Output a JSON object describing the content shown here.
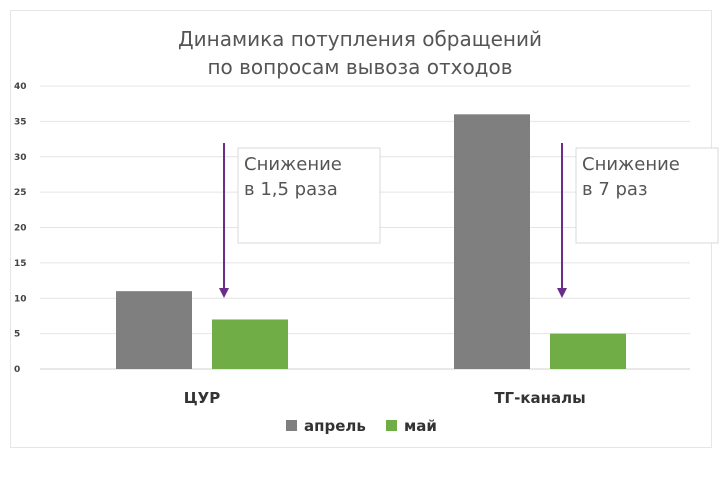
{
  "chart_data": {
    "type": "bar",
    "title_lines": [
      "Динамика потупления обращений",
      "по вопросам вывоза отходов"
    ],
    "categories": [
      "ЦУР",
      "ТГ-каналы"
    ],
    "series": [
      {
        "name": "апрель",
        "values": [
          11,
          36
        ],
        "color": "#7f7f7f"
      },
      {
        "name": "май",
        "values": [
          7,
          5
        ],
        "color": "#70ad47"
      }
    ],
    "ylim": [
      0,
      40
    ],
    "yticks": [
      0,
      5,
      10,
      15,
      20,
      25,
      30,
      35,
      40
    ],
    "grid": true,
    "legend_position": "bottom",
    "annotations": [
      {
        "category": "ЦУР",
        "lines": [
          "Снижение",
          "в 1,5 раза"
        ]
      },
      {
        "category": "ТГ-каналы",
        "lines": [
          "Снижение",
          "в 7 раз"
        ]
      }
    ],
    "arrow_color": "#6a2d8a"
  }
}
